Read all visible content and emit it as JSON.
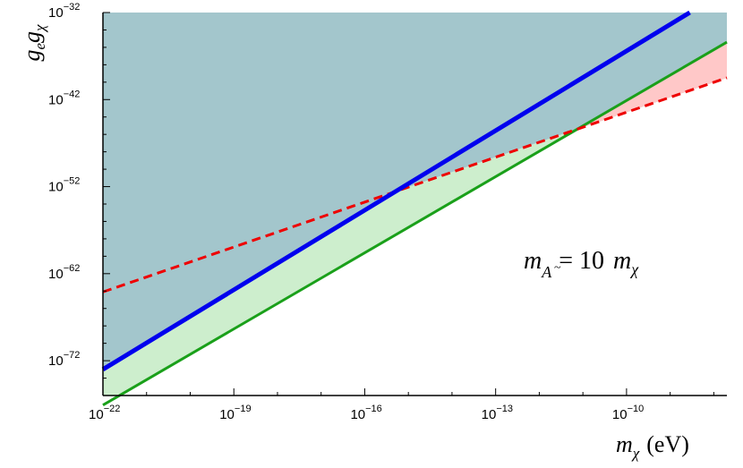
{
  "chart_data": {
    "type": "line",
    "title": "",
    "x_scale": "log10",
    "y_scale": "log10",
    "xlim_log10": [
      -22,
      -7.7
    ],
    "ylim_log10": [
      -76,
      -32
    ],
    "x_ticks": [
      {
        "base": "10",
        "exp": "−22",
        "log10": -22
      },
      {
        "base": "10",
        "exp": "−19",
        "log10": -19
      },
      {
        "base": "10",
        "exp": "−16",
        "log10": -16
      },
      {
        "base": "10",
        "exp": "−13",
        "log10": -13
      },
      {
        "base": "10",
        "exp": "−10",
        "log10": -10
      }
    ],
    "y_ticks": [
      {
        "base": "10",
        "exp": "−32",
        "log10": -32
      },
      {
        "base": "10",
        "exp": "−42",
        "log10": -42
      },
      {
        "base": "10",
        "exp": "−52",
        "log10": -52
      },
      {
        "base": "10",
        "exp": "−62",
        "log10": -62
      },
      {
        "base": "10",
        "exp": "−72",
        "log10": -72
      }
    ],
    "xlabel": {
      "sym": "m",
      "sub": "χ",
      "unit": "(eV)"
    },
    "ylabel": {
      "g1": "g",
      "s1": "e",
      "g2": "g",
      "s2": "χ"
    },
    "annotation": {
      "lhs": "m",
      "sub_base": "A",
      "sub_mark": "~",
      "eq": "= 10",
      "rhs": "m",
      "rhs_sub": "χ"
    },
    "series": [
      {
        "color": "#0000ee",
        "style": "solid",
        "x_log10": [
          -22,
          -8.55
        ],
        "y_log10": [
          -73.0,
          -32.0
        ]
      },
      {
        "color": "#ee0000",
        "style": "dashed",
        "x_log10": [
          -22,
          -7.7
        ],
        "y_log10": [
          -64.1,
          -39.5
        ]
      },
      {
        "color": "#1aa01a",
        "style": "solid",
        "x_log10": [
          -22,
          -7.7
        ],
        "y_log10": [
          -77.1,
          -35.4
        ]
      }
    ],
    "regions": [
      {
        "color": "#a3c6cc",
        "label": "excluded (blue-grey)"
      },
      {
        "color": "#cdeecd",
        "label": "green band"
      },
      {
        "color": "#ffc8c8",
        "label": "red wedge"
      }
    ]
  }
}
